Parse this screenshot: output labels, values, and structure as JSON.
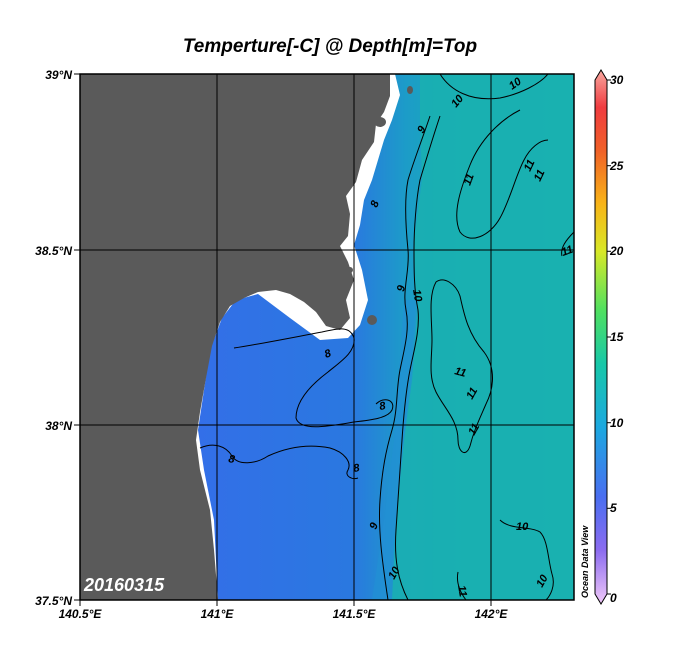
{
  "title": "Temperture[-C] @ Depth[m]=Top",
  "date_label": "20160315",
  "credit": "Ocean Data View",
  "map": {
    "lon_ticks": [
      "140.5°E",
      "141°E",
      "141.5°E",
      "142°E"
    ],
    "lat_ticks": [
      "39°N",
      "38.5°N",
      "38°N",
      "37.5°N"
    ],
    "lon_range": [
      140.5,
      142.3
    ],
    "lat_range": [
      37.5,
      39.0
    ],
    "grid": true,
    "land_color": "#5a5a5a",
    "ocean_cold_color": "#3a6ff0",
    "ocean_warm_color": "#1ab0b0"
  },
  "contour_labels": [
    "10",
    "10",
    "9",
    "11",
    "11",
    "11",
    "11",
    "8",
    "9",
    "10",
    "8",
    "8",
    "11",
    "11",
    "11",
    "8",
    "8",
    "9",
    "10",
    "10",
    "11",
    "10"
  ],
  "colorbar": {
    "ticks": [
      "30",
      "25",
      "20",
      "15",
      "10",
      "5",
      "0"
    ],
    "range": [
      0,
      30
    ]
  }
}
